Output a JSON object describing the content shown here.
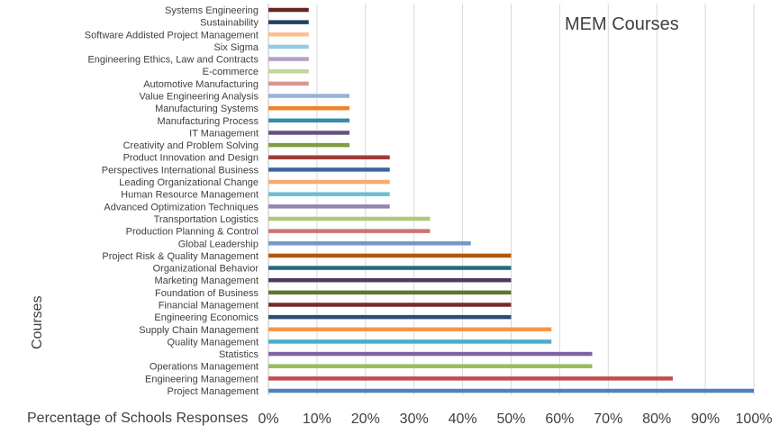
{
  "chart_data": {
    "type": "bar",
    "orientation": "horizontal",
    "title": "MEM Courses",
    "xlabel": "Percentage of Schools Responses",
    "ylabel": "Courses",
    "xlim": [
      0,
      100
    ],
    "xticks": [
      "0%",
      "10%",
      "20%",
      "30%",
      "40%",
      "50%",
      "60%",
      "70%",
      "80%",
      "90%",
      "100%"
    ],
    "grid": "vertical",
    "legend": "none",
    "categories": [
      "Project Management",
      "Engineering Management",
      "Operations Management",
      "Statistics",
      "Quality Management",
      "Supply Chain Management",
      "Engineering Economics",
      "Financial Management",
      "Foundation of Business",
      "Marketing Management",
      "Organizational Behavior",
      "Project Risk & Quality Management",
      "Global Leadership",
      "Production Planning & Control",
      "Transportation Logistics",
      "Advanced Optimization Techniques",
      "Human Resource Management",
      "Leading Organizational Change",
      "Perspectives International Business",
      "Product Innovation and Design",
      "Creativity and Problem Solving",
      "IT Management",
      "Manufacturing Process",
      "Manufacturing Systems",
      "Value Engineering Analysis",
      "Automotive Manufacturing",
      "E-commerce",
      "Engineering Ethics, Law and Contracts",
      "Six Sigma",
      "Software Addisted Project Management",
      "Sustainability",
      "Systems Engineering"
    ],
    "values": [
      100,
      83.3,
      66.7,
      66.7,
      58.3,
      58.3,
      50,
      50,
      50,
      50,
      50,
      50,
      41.7,
      33.3,
      33.3,
      25,
      25,
      25,
      25,
      25,
      16.7,
      16.7,
      16.7,
      16.7,
      16.7,
      8.3,
      8.3,
      8.3,
      8.3,
      8.3,
      8.3,
      8.3
    ],
    "colors": [
      "#4f81bd",
      "#c0504d",
      "#9bbb59",
      "#8064a2",
      "#4bacc6",
      "#f79646",
      "#2c4d75",
      "#772c2a",
      "#5f7530",
      "#4d3b62",
      "#276a7c",
      "#b65708",
      "#729aca",
      "#cd7371",
      "#afc97a",
      "#9983b5",
      "#6fbdd1",
      "#f9ab6b",
      "#3a679c",
      "#9f3b38",
      "#7f9d40",
      "#664f82",
      "#358ea6",
      "#f38128",
      "#95b3d7",
      "#d99694",
      "#c3d69b",
      "#b2a1c7",
      "#93cddd",
      "#fac090",
      "#254061",
      "#632523"
    ]
  }
}
